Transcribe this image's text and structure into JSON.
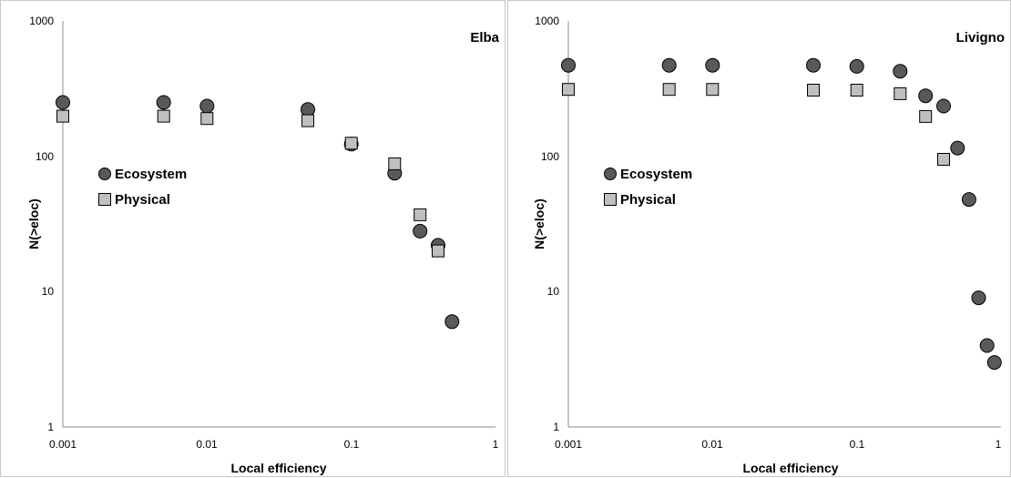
{
  "chart_data": [
    {
      "type": "scatter",
      "title": "Elba",
      "xlabel": "Local efficiency",
      "ylabel": "N(>eloc)",
      "x_scale": "log",
      "y_scale": "log",
      "xlim": [
        0.001,
        1
      ],
      "ylim": [
        1,
        1000
      ],
      "x_ticks": [
        "0.001",
        "0.01",
        "0.1",
        "1"
      ],
      "y_ticks": [
        "1",
        "10",
        "100",
        "1000"
      ],
      "grid": false,
      "legend_placement": "middle-left",
      "series": [
        {
          "name": "Ecosystem",
          "marker": "circle",
          "color": "#595959",
          "points": [
            {
              "x": 0.001,
              "y": 250
            },
            {
              "x": 0.005,
              "y": 250
            },
            {
              "x": 0.01,
              "y": 235
            },
            {
              "x": 0.05,
              "y": 222
            },
            {
              "x": 0.1,
              "y": 123
            },
            {
              "x": 0.2,
              "y": 75
            },
            {
              "x": 0.3,
              "y": 28
            },
            {
              "x": 0.4,
              "y": 22
            },
            {
              "x": 0.5,
              "y": 6
            }
          ]
        },
        {
          "name": "Physical",
          "marker": "square",
          "color": "#bfbfbf",
          "points": [
            {
              "x": 0.001,
              "y": 198
            },
            {
              "x": 0.005,
              "y": 198
            },
            {
              "x": 0.01,
              "y": 190
            },
            {
              "x": 0.05,
              "y": 183
            },
            {
              "x": 0.1,
              "y": 125
            },
            {
              "x": 0.2,
              "y": 88
            },
            {
              "x": 0.3,
              "y": 37
            },
            {
              "x": 0.4,
              "y": 20
            }
          ]
        }
      ]
    },
    {
      "type": "scatter",
      "title": "Livigno",
      "xlabel": "Local efficiency",
      "ylabel": "N(>eloc)",
      "x_scale": "log",
      "y_scale": "log",
      "xlim": [
        0.001,
        1
      ],
      "ylim": [
        1,
        1000
      ],
      "x_ticks": [
        "0.001",
        "0.01",
        "0.1",
        "1"
      ],
      "y_ticks": [
        "1",
        "10",
        "100",
        "1000"
      ],
      "grid": false,
      "legend_placement": "middle-left",
      "series": [
        {
          "name": "Ecosystem",
          "marker": "circle",
          "color": "#595959",
          "points": [
            {
              "x": 0.001,
              "y": 470
            },
            {
              "x": 0.005,
              "y": 470
            },
            {
              "x": 0.01,
              "y": 470
            },
            {
              "x": 0.05,
              "y": 470
            },
            {
              "x": 0.1,
              "y": 462
            },
            {
              "x": 0.2,
              "y": 425
            },
            {
              "x": 0.3,
              "y": 280
            },
            {
              "x": 0.4,
              "y": 235
            },
            {
              "x": 0.5,
              "y": 115
            },
            {
              "x": 0.6,
              "y": 48
            },
            {
              "x": 0.7,
              "y": 9
            },
            {
              "x": 0.8,
              "y": 4
            },
            {
              "x": 0.9,
              "y": 3
            }
          ]
        },
        {
          "name": "Physical",
          "marker": "square",
          "color": "#bfbfbf",
          "points": [
            {
              "x": 0.001,
              "y": 312
            },
            {
              "x": 0.005,
              "y": 312
            },
            {
              "x": 0.01,
              "y": 312
            },
            {
              "x": 0.05,
              "y": 308
            },
            {
              "x": 0.1,
              "y": 308
            },
            {
              "x": 0.2,
              "y": 290
            },
            {
              "x": 0.3,
              "y": 197
            },
            {
              "x": 0.4,
              "y": 95
            }
          ]
        }
      ]
    }
  ]
}
